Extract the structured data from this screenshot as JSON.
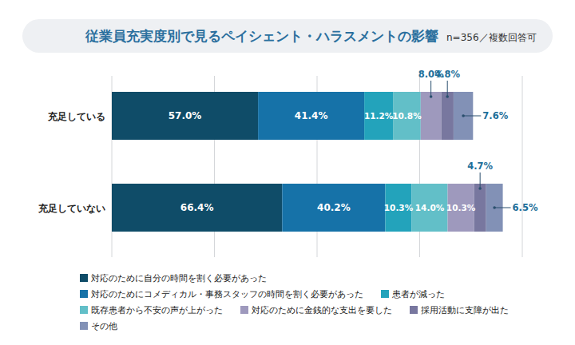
{
  "chart_data": {
    "type": "bar",
    "orientation": "horizontal",
    "stacked": true,
    "data_labels": true,
    "grid": true,
    "tick_labels": false,
    "legend": "bottom",
    "title": "従業員充実度別で見るペイシェント・ハラスメントの影響",
    "subtitle": "n=356／複数回答可",
    "categories": [
      "充足している",
      "充足していない"
    ],
    "xlim": [
      0,
      160
    ],
    "xticks": [
      0,
      40,
      80,
      120,
      160
    ],
    "series": [
      {
        "name": "対応のために自分の時間を割く必要があった",
        "color": "#0f4c68",
        "values": [
          57.0,
          66.4
        ],
        "value_labels": [
          "57.0%",
          "66.4%"
        ]
      },
      {
        "name": "対応のためにコメディカル・事務スタッフの時間を割く必要があった",
        "color": "#1672a8",
        "values": [
          41.4,
          40.2
        ],
        "value_labels": [
          "41.4%",
          "40.2%"
        ]
      },
      {
        "name": "患者が減った",
        "color": "#23a3bb",
        "values": [
          11.2,
          10.3
        ],
        "value_labels": [
          "11.2%",
          "10.3%"
        ]
      },
      {
        "name": "既存患者から不安の声が上がった",
        "color": "#62bfc8",
        "values": [
          10.8,
          14.0
        ],
        "value_labels": [
          "10.8%",
          "14.0%"
        ]
      },
      {
        "name": "対応のために金銭的な支出を要した",
        "color": "#9e99bd",
        "values": [
          8.0,
          10.3
        ],
        "value_labels": [
          "8.0%",
          "10.3%"
        ]
      },
      {
        "name": "採用活動に支障が出た",
        "color": "#78779f",
        "values": [
          4.8,
          4.7
        ],
        "value_labels": [
          "4.8%",
          "4.7%"
        ]
      },
      {
        "name": "その他",
        "color": "#8291b6",
        "values": [
          7.6,
          6.5
        ],
        "value_labels": [
          "7.6%",
          "6.5%"
        ]
      }
    ]
  }
}
